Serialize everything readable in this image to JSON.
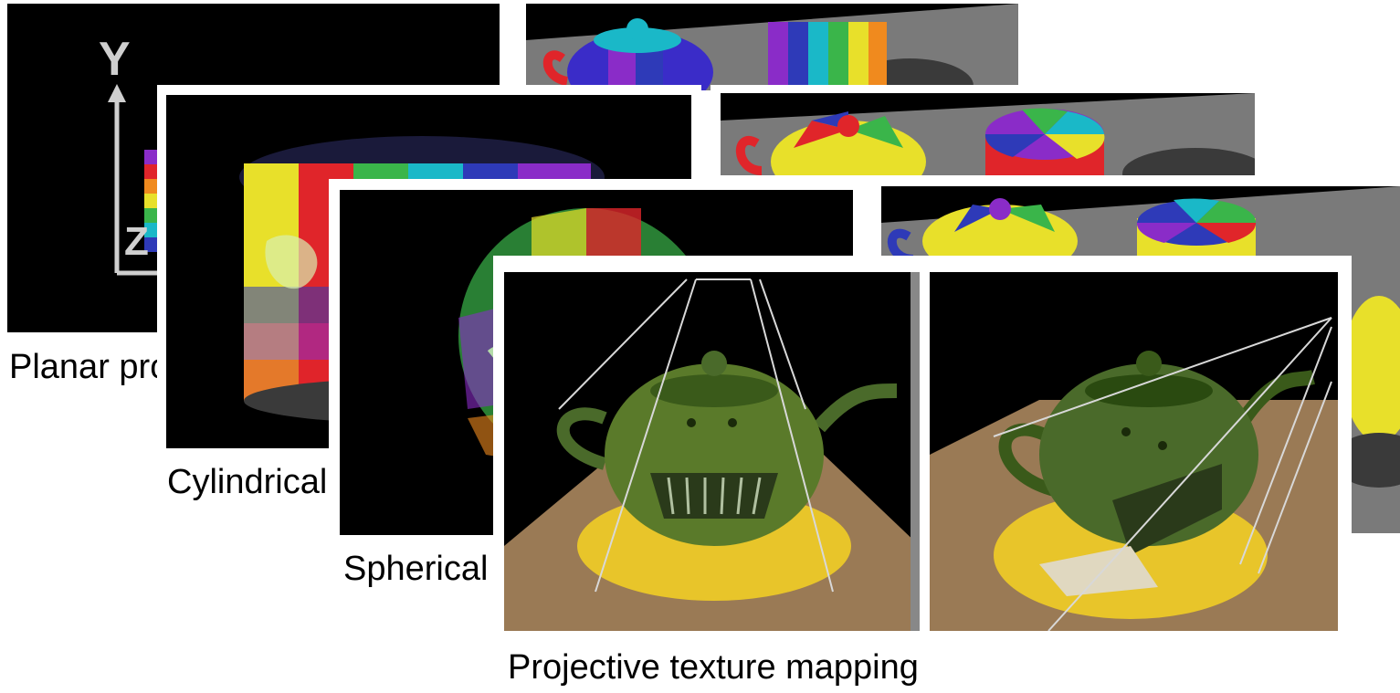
{
  "captions": {
    "planar": "Planar projection",
    "cylindrical": "Cylindrical projection",
    "spherical": "Spherical projection",
    "projective": "Projective texture mapping"
  },
  "axis_labels": {
    "y": "Y",
    "z": "Z"
  },
  "colors": {
    "background": "#ffffff",
    "render_bg": "#000000",
    "tabletop": "#7a7a7a",
    "rainbow": [
      "#e8e02a",
      "#3ab54a",
      "#1ab8c8",
      "#2e3ab8",
      "#8a2cc8",
      "#e0252a",
      "#f08a1e"
    ],
    "teapot_green": "#5a7a2a",
    "spot_yellow": "#e8c52a",
    "wood": "#9a7a55"
  }
}
